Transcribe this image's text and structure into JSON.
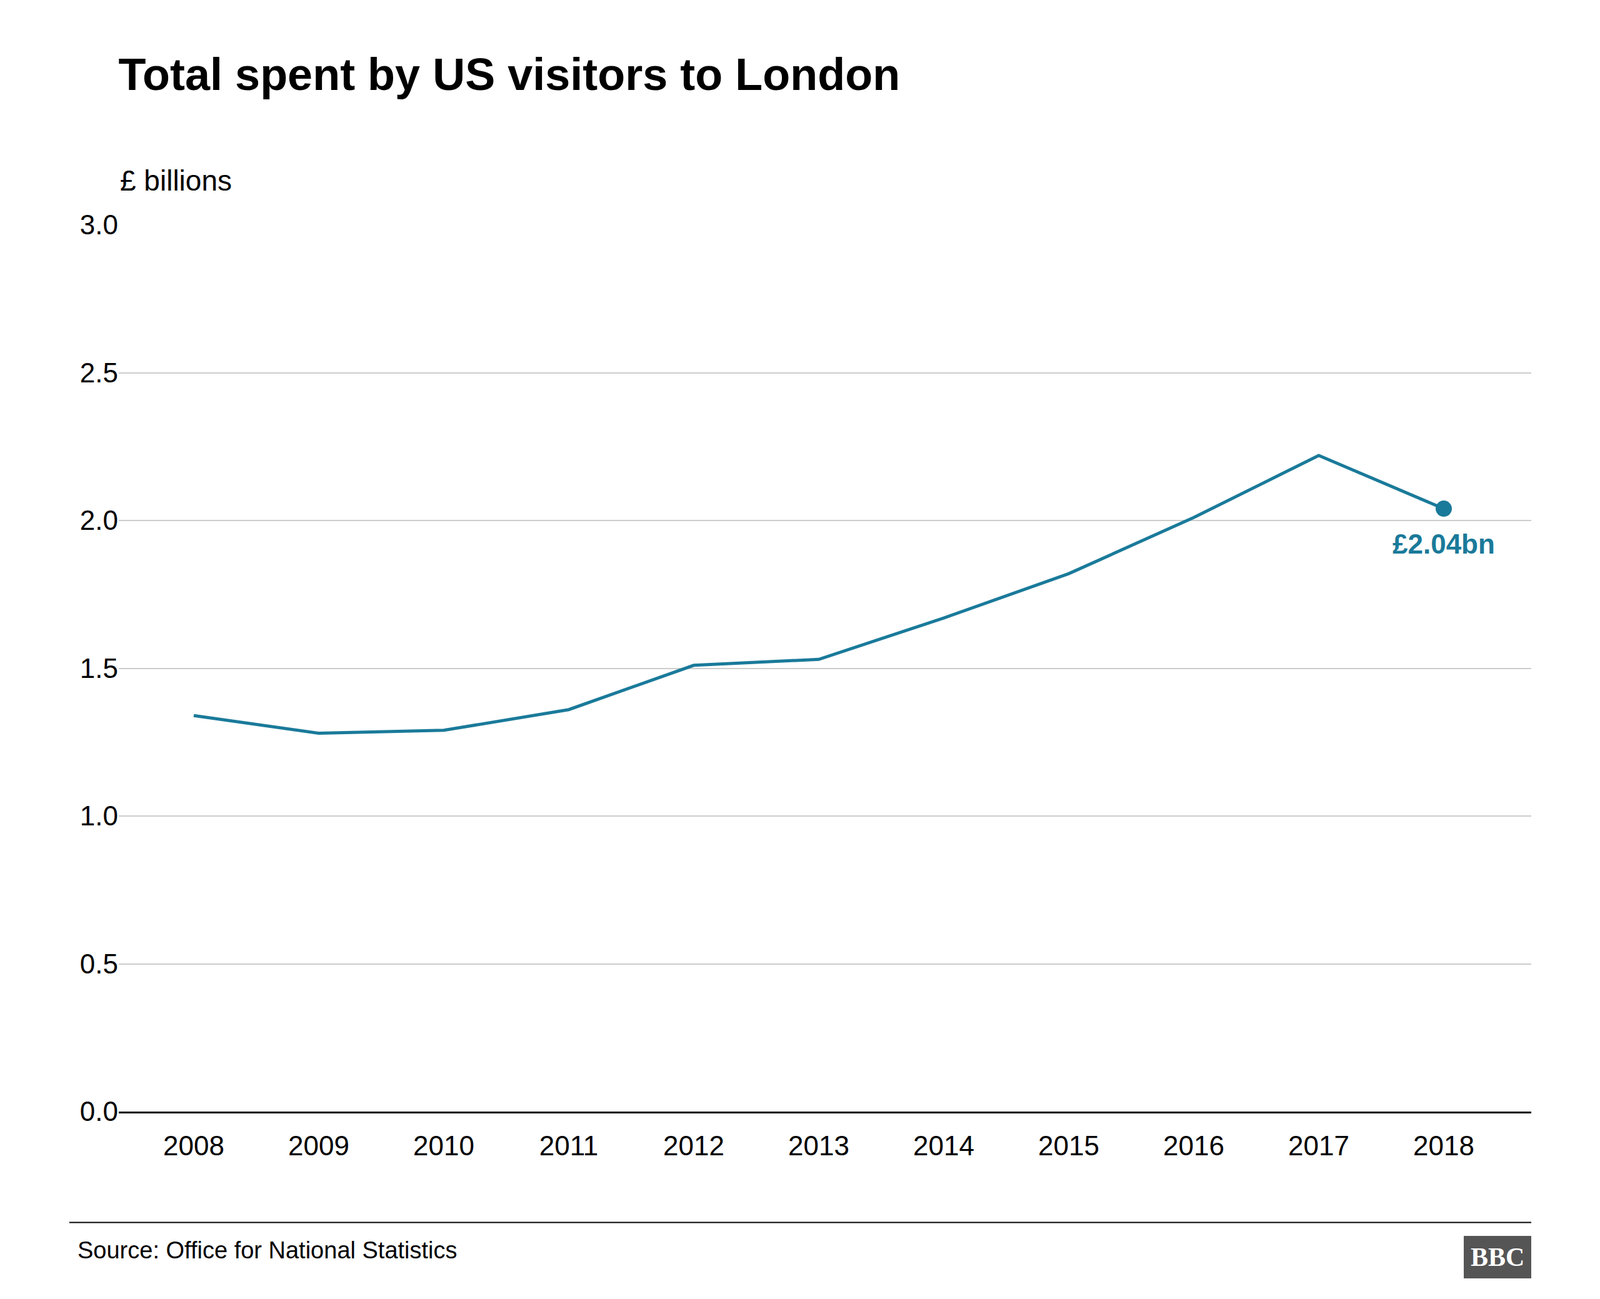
{
  "chart_data": {
    "type": "line",
    "title": "Total spent by US visitors to London",
    "ylabel": "£ billions",
    "x": [
      2008,
      2009,
      2010,
      2011,
      2012,
      2013,
      2014,
      2015,
      2016,
      2017,
      2018
    ],
    "values": [
      1.34,
      1.28,
      1.29,
      1.36,
      1.51,
      1.53,
      1.67,
      1.82,
      2.01,
      2.22,
      2.04
    ],
    "color": "#1a7a9a",
    "annotation": "£2.04bn",
    "source": "Source: Office for National Statistics",
    "logo": "BBC",
    "xlim": [
      2007.4,
      2018.7
    ],
    "xticks": [
      2008,
      2009,
      2010,
      2011,
      2012,
      2013,
      2014,
      2015,
      2016,
      2017,
      2018
    ],
    "ylim": [
      0.0,
      3.0
    ],
    "yticks": [
      {
        "value": 0.0,
        "label": "0.0"
      },
      0.5,
      {
        "value": 1.0,
        "label": "1.0"
      },
      1.5,
      {
        "value": 2.0,
        "label": "2.0"
      },
      2.5,
      {
        "value": 3.0,
        "label": "3.0"
      }
    ],
    "grid": "y"
  }
}
